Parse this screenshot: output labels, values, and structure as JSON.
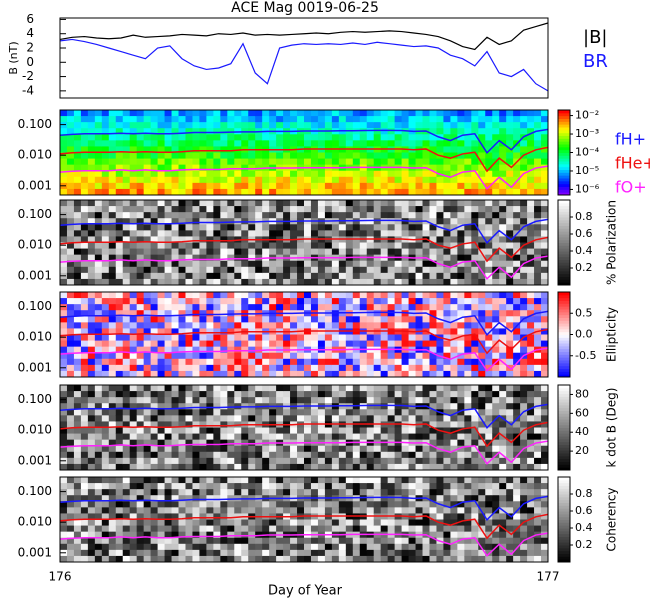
{
  "chart_data": [
    {
      "type": "line",
      "title": "ACE Mag 0019-06-25",
      "ylabel": "B (nT)",
      "xlabel": "Day of Year",
      "x": [
        176,
        176.025,
        176.05,
        176.075,
        176.1,
        176.125,
        176.15,
        176.175,
        176.2,
        176.225,
        176.25,
        176.275,
        176.3,
        176.325,
        176.35,
        176.375,
        176.4,
        176.425,
        176.45,
        176.475,
        176.5,
        176.525,
        176.55,
        176.575,
        176.6,
        176.625,
        176.65,
        176.675,
        176.7,
        176.725,
        176.75,
        176.775,
        176.8,
        176.825,
        176.85,
        176.875,
        176.9,
        176.925,
        176.95,
        176.975,
        177
      ],
      "xlim": [
        176,
        177
      ],
      "xticks": [
        176,
        177
      ],
      "ylim": [
        -5,
        6.2
      ],
      "yticks": [
        -4,
        -2,
        0,
        2,
        4,
        6
      ],
      "series": [
        {
          "name": "|B|",
          "color": "#000000",
          "values": [
            3.2,
            3.5,
            3.6,
            3.4,
            3.3,
            3.4,
            3.8,
            3.5,
            3.6,
            3.7,
            3.9,
            3.8,
            3.7,
            4.0,
            3.9,
            4.1,
            3.8,
            3.9,
            3.8,
            3.9,
            4.0,
            4.1,
            4.0,
            4.2,
            4.3,
            4.2,
            4.3,
            4.4,
            4.3,
            4.1,
            3.9,
            3.6,
            3.0,
            2.2,
            1.8,
            3.5,
            2.5,
            3.0,
            4.5,
            5.0,
            5.5
          ]
        },
        {
          "name": "BR",
          "color": "#1a1aff",
          "values": [
            3.0,
            3.2,
            2.9,
            2.5,
            2.0,
            1.5,
            1.0,
            0.5,
            2.0,
            2.3,
            0.5,
            -0.5,
            -1.0,
            -0.8,
            -0.2,
            2.6,
            -1.5,
            -3.0,
            2.0,
            2.4,
            2.6,
            2.5,
            2.6,
            2.5,
            2.7,
            2.5,
            2.8,
            2.6,
            2.4,
            2.2,
            2.3,
            2.0,
            1.0,
            0.5,
            -0.5,
            1.5,
            -1.5,
            -2.0,
            -1.0,
            -3.0,
            -4.0
          ]
        }
      ]
    },
    {
      "type": "spectrogram",
      "colormap": "rainbow",
      "ylim": [
        0.0005,
        0.3
      ],
      "yticks": [
        0.001,
        {
          "value": 0.01,
          "label": "0.010"
        },
        {
          "value": 0.1,
          "label": "0.100"
        }
      ],
      "clim": [
        5e-07,
        0.02
      ],
      "clog": true,
      "cticks": [
        {
          "value": 1e-06,
          "label": "10⁻⁶"
        },
        {
          "value": 1e-05,
          "label": "10⁻⁵"
        },
        {
          "value": 0.0001,
          "label": "10⁻⁴"
        },
        {
          "value": 0.001,
          "label": "10⁻³"
        },
        {
          "value": 0.01,
          "label": "10⁻²"
        }
      ],
      "series": [
        {
          "name": "fH+",
          "color": "#1a1aff",
          "values": [
            0.045,
            0.048,
            0.05,
            0.05,
            0.05,
            0.052,
            0.05,
            0.052,
            0.05,
            0.05,
            0.052,
            0.055,
            0.055,
            0.055,
            0.057,
            0.058,
            0.058,
            0.06,
            0.06,
            0.06,
            0.062,
            0.062,
            0.062,
            0.063,
            0.063,
            0.064,
            0.065,
            0.065,
            0.064,
            0.06,
            0.062,
            0.04,
            0.03,
            0.045,
            0.05,
            0.012,
            0.03,
            0.015,
            0.04,
            0.06,
            0.07
          ]
        },
        {
          "name": "fHe+",
          "color": "#ee1111",
          "values": [
            0.011,
            0.012,
            0.0125,
            0.0125,
            0.0125,
            0.013,
            0.0125,
            0.013,
            0.0125,
            0.0125,
            0.013,
            0.014,
            0.014,
            0.014,
            0.014,
            0.015,
            0.015,
            0.015,
            0.015,
            0.015,
            0.016,
            0.016,
            0.016,
            0.016,
            0.016,
            0.016,
            0.016,
            0.016,
            0.016,
            0.015,
            0.016,
            0.01,
            0.008,
            0.011,
            0.0125,
            0.003,
            0.008,
            0.004,
            0.01,
            0.015,
            0.018
          ]
        },
        {
          "name": "fO+",
          "color": "#ff22ff",
          "values": [
            0.0028,
            0.003,
            0.0031,
            0.0031,
            0.0031,
            0.0033,
            0.0031,
            0.0033,
            0.0031,
            0.0031,
            0.0033,
            0.0034,
            0.0034,
            0.0034,
            0.0036,
            0.0036,
            0.0036,
            0.0038,
            0.0038,
            0.0038,
            0.0039,
            0.0039,
            0.0039,
            0.0039,
            0.004,
            0.004,
            0.004,
            0.004,
            0.004,
            0.0038,
            0.0039,
            0.0025,
            0.0019,
            0.0028,
            0.0031,
            0.0008,
            0.0019,
            0.0009,
            0.0025,
            0.0038,
            0.0044
          ]
        }
      ]
    },
    {
      "type": "spectrogram",
      "colormap": "gray",
      "ylim": [
        0.0005,
        0.3
      ],
      "yticks": [
        0.001,
        {
          "value": 0.01,
          "label": "0.010"
        },
        {
          "value": 0.1,
          "label": "0.100"
        }
      ],
      "clabel": "% Polarization",
      "clim": [
        0,
        1
      ],
      "cticks": [
        0.2,
        0.4,
        0.6,
        0.8
      ]
    },
    {
      "type": "spectrogram",
      "colormap": "bwr",
      "ylim": [
        0.0005,
        0.3
      ],
      "yticks": [
        0.001,
        {
          "value": 0.01,
          "label": "0.010"
        },
        {
          "value": 0.1,
          "label": "0.100"
        }
      ],
      "clabel": "Ellipticity",
      "clim": [
        -1,
        1
      ],
      "cticks": [
        -0.5,
        {
          "value": 0,
          "label": "0.0"
        },
        0.5
      ]
    },
    {
      "type": "spectrogram",
      "colormap": "gray",
      "ylim": [
        0.0005,
        0.3
      ],
      "yticks": [
        0.001,
        {
          "value": 0.01,
          "label": "0.010"
        },
        {
          "value": 0.1,
          "label": "0.100"
        }
      ],
      "clabel": "k dot B (Deg)",
      "clim": [
        0,
        90
      ],
      "cticks": [
        20,
        40,
        60,
        80
      ]
    },
    {
      "type": "spectrogram",
      "colormap": "gray",
      "ylim": [
        0.0005,
        0.3
      ],
      "yticks": [
        0.001,
        {
          "value": 0.01,
          "label": "0.010"
        },
        {
          "value": 0.1,
          "label": "0.100"
        }
      ],
      "clabel": "Coherency",
      "clim": [
        0,
        1
      ],
      "cticks": [
        0.2,
        0.4,
        0.6,
        0.8
      ]
    }
  ]
}
